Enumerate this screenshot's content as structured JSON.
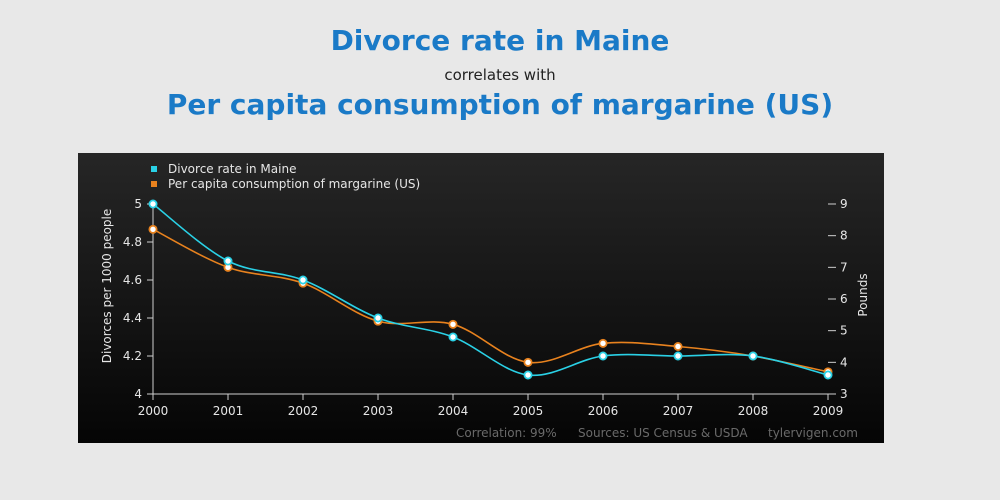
{
  "header": {
    "title_a": "Divorce rate in Maine",
    "connector": "correlates with",
    "title_b": "Per capita consumption of margarine (US)"
  },
  "chart_data": {
    "type": "line",
    "x": [
      "2000",
      "2001",
      "2002",
      "2003",
      "2004",
      "2005",
      "2006",
      "2007",
      "2008",
      "2009"
    ],
    "series": [
      {
        "name": "Divorce rate in Maine",
        "axis": "left",
        "color": "#2ad1e6",
        "values": [
          5.0,
          4.7,
          4.6,
          4.4,
          4.3,
          4.1,
          4.2,
          4.2,
          4.2,
          4.1
        ]
      },
      {
        "name": "Per capita consumption of margarine (US)",
        "axis": "right",
        "color": "#e8821e",
        "values": [
          8.2,
          7.0,
          6.5,
          5.3,
          5.2,
          4.0,
          4.6,
          4.5,
          4.2,
          3.7
        ]
      }
    ],
    "y_left": {
      "label": "Divorces per 1000 people",
      "range": [
        4,
        5
      ],
      "ticks": [
        "4",
        "4.2",
        "4.4",
        "4.6",
        "4.8",
        "5"
      ]
    },
    "y_right": {
      "label": "Pounds",
      "range": [
        3,
        9
      ],
      "ticks": [
        "3",
        "4",
        "5",
        "6",
        "7",
        "8",
        "9"
      ]
    },
    "legend_position": "top-left",
    "grid": false,
    "footer": {
      "correlation": "Correlation: 99%",
      "sources": "Sources: US Census & USDA",
      "site": "tylervigen.com"
    }
  }
}
